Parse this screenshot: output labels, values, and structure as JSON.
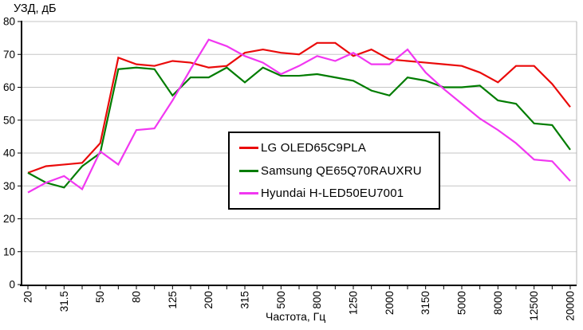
{
  "chart": {
    "y_axis_title": "УЗД, дБ",
    "x_axis_title": "Частота, Гц",
    "y_ticks": [
      0,
      10,
      20,
      30,
      40,
      50,
      60,
      70,
      80
    ],
    "x_tick_labels": [
      "20",
      "31.5",
      "50",
      "80",
      "125",
      "200",
      "315",
      "500",
      "800",
      "1250",
      "2000",
      "3150",
      "5000",
      "8000",
      "12500",
      "20000"
    ],
    "grid_color": "#c6c6c6",
    "axis_color": "#000000",
    "plot_right_border_color": "#b4b4b4",
    "background_color": "#ffffff"
  },
  "chart_data": {
    "type": "line",
    "title": "",
    "xlabel": "Частота, Гц",
    "ylabel": "УЗД, дБ",
    "ylim": [
      0,
      80
    ],
    "x_scale": "log-third-octave-bands",
    "grid": true,
    "legend_position": "center",
    "x": [
      20,
      25,
      31.5,
      40,
      50,
      63,
      80,
      100,
      125,
      160,
      200,
      250,
      315,
      400,
      500,
      630,
      800,
      1000,
      1250,
      1600,
      2000,
      2500,
      3150,
      4000,
      5000,
      6300,
      8000,
      10000,
      12500,
      16000,
      20000
    ],
    "series": [
      {
        "id": "lg",
        "name": "LG OLED65C9PLA",
        "color": "#ea0a0a",
        "values": [
          34,
          36,
          36.5,
          37,
          43,
          69,
          67,
          66.5,
          68,
          67.5,
          66,
          66.5,
          70.5,
          71.5,
          70.5,
          70,
          73.5,
          73.5,
          69.5,
          71.5,
          68.5,
          68,
          67.5,
          67,
          66.5,
          64.5,
          61.5,
          66.5,
          66.5,
          61,
          54
        ]
      },
      {
        "id": "samsung",
        "name": "Samsung QE65Q70RAUXRU",
        "color": "#007c00",
        "values": [
          34,
          31,
          29.5,
          36,
          40,
          65.5,
          66,
          65.5,
          57.5,
          63,
          63,
          66,
          61.5,
          66,
          63.5,
          63.5,
          64,
          63,
          62,
          59,
          57.5,
          63,
          62,
          60,
          60,
          60.5,
          56,
          55,
          49,
          48.5,
          41
        ]
      },
      {
        "id": "hyundai",
        "name": "Hyundai H-LED50EU7001",
        "color": "#f137f1",
        "values": [
          28,
          31,
          33,
          29,
          40.5,
          36.5,
          47,
          47.5,
          56,
          65.5,
          74.5,
          72.5,
          69.5,
          67.5,
          64,
          66.5,
          69.5,
          68,
          70.5,
          67,
          67,
          71.5,
          64.5,
          59.5,
          55,
          50.5,
          47,
          43,
          38,
          37.5,
          31.5
        ]
      }
    ]
  }
}
